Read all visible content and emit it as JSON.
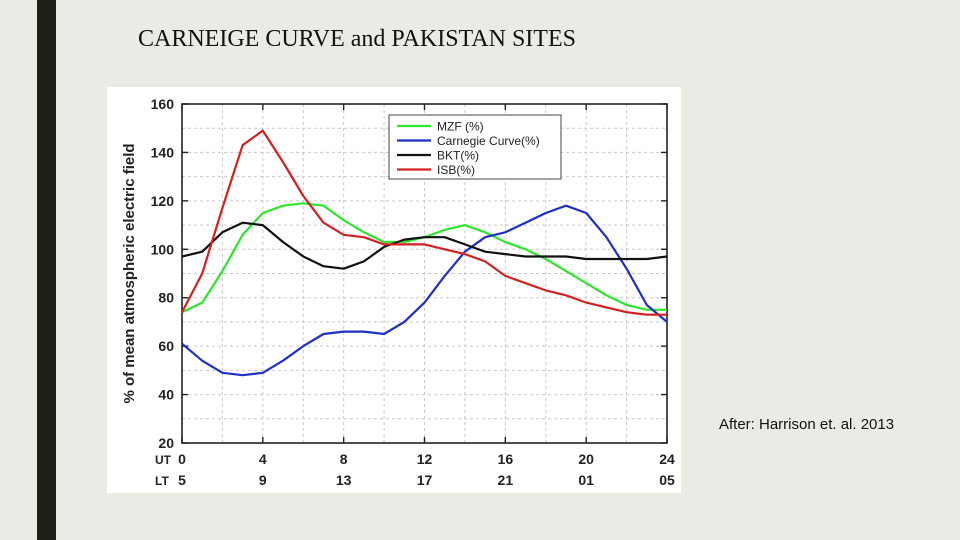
{
  "slide": {
    "title": "CARNEIGE CURVE and PAKISTAN SITES",
    "citation": "After: Harrison et. al. 2013",
    "accent_bar_color": "#1E1F17"
  },
  "chart_data": {
    "type": "line",
    "title": "",
    "xlabel": "",
    "ylabel": "% of mean atmospheric electric field",
    "xlim": [
      0,
      24
    ],
    "ylim": [
      20,
      160
    ],
    "grid": true,
    "legend_position": "top-center",
    "x_ticks": [
      0,
      4,
      8,
      12,
      16,
      20,
      24
    ],
    "x_tick_labels_ut": [
      "0",
      "4",
      "8",
      "12",
      "16",
      "20",
      "24"
    ],
    "x_tick_labels_lt": [
      "5",
      "9",
      "13",
      "17",
      "21",
      "01",
      "05"
    ],
    "x_row_label_ut": "UT",
    "x_row_label_lt": "LT",
    "y_ticks": [
      20,
      40,
      60,
      80,
      100,
      120,
      140,
      160
    ],
    "y_tick_labels": [
      "20",
      "40",
      "60",
      "80",
      "100",
      "120",
      "140",
      "160"
    ],
    "series": [
      {
        "name": "MZF (%)",
        "color": "#2EE62E",
        "x": [
          0,
          1,
          2,
          3,
          4,
          5,
          6,
          7,
          8,
          9,
          10,
          11,
          12,
          13,
          14,
          15,
          16,
          17,
          18,
          19,
          20,
          21,
          22,
          23,
          24
        ],
        "values": [
          74,
          78,
          91,
          106,
          115,
          118,
          119,
          118,
          112,
          107,
          103,
          103,
          105,
          108,
          110,
          107,
          103,
          100,
          96,
          91,
          86,
          81,
          77,
          75,
          75
        ]
      },
      {
        "name": "Carnegie Curve(%)",
        "color": "#1F2FC8",
        "x": [
          0,
          1,
          2,
          3,
          4,
          5,
          6,
          7,
          8,
          9,
          10,
          11,
          12,
          13,
          14,
          15,
          16,
          17,
          18,
          19,
          20,
          21,
          22,
          23,
          24
        ],
        "values": [
          61,
          54,
          49,
          48,
          49,
          54,
          60,
          65,
          66,
          66,
          65,
          70,
          78,
          89,
          99,
          105,
          107,
          111,
          115,
          118,
          115,
          105,
          92,
          77,
          70
        ]
      },
      {
        "name": "BKT(%)",
        "color": "#111111",
        "x": [
          0,
          1,
          2,
          3,
          4,
          5,
          6,
          7,
          8,
          9,
          10,
          11,
          12,
          13,
          14,
          15,
          16,
          17,
          18,
          19,
          20,
          21,
          22,
          23,
          24
        ],
        "values": [
          97,
          99,
          107,
          111,
          110,
          103,
          97,
          93,
          92,
          95,
          101,
          104,
          105,
          105,
          102,
          99,
          98,
          97,
          97,
          97,
          96,
          96,
          96,
          96,
          97
        ]
      },
      {
        "name": "ISB(%)",
        "color": "#D42020",
        "x": [
          0,
          1,
          2,
          3,
          4,
          5,
          6,
          7,
          8,
          9,
          10,
          11,
          12,
          13,
          14,
          15,
          16,
          17,
          18,
          19,
          20,
          21,
          22,
          23,
          24
        ],
        "values": [
          74,
          90,
          117,
          143,
          149,
          136,
          122,
          111,
          106,
          105,
          102,
          102,
          102,
          100,
          98,
          95,
          89,
          86,
          83,
          81,
          78,
          76,
          74,
          73,
          73
        ]
      }
    ]
  }
}
